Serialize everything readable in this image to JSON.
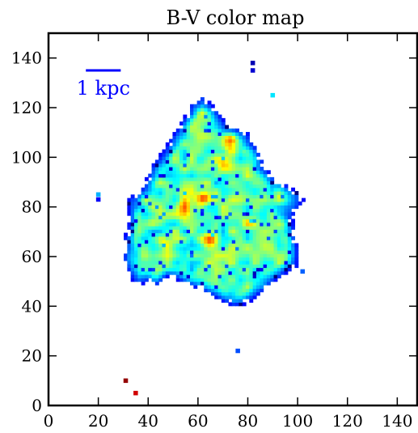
{
  "chart_data": {
    "type": "heatmap",
    "title": "B-V color map",
    "xlabel": "",
    "ylabel": "",
    "xlim": [
      0,
      148
    ],
    "ylim": [
      0,
      150
    ],
    "x_ticks": [
      0,
      20,
      40,
      60,
      80,
      100,
      120,
      140
    ],
    "y_ticks": [
      0,
      20,
      40,
      60,
      80,
      100,
      120,
      140
    ],
    "x_tick_labels": [
      "0",
      "20",
      "40",
      "60",
      "80",
      "100",
      "120",
      "140"
    ],
    "y_tick_labels": [
      "0",
      "20",
      "40",
      "60",
      "80",
      "100",
      "120",
      "140"
    ],
    "colormap": "jet",
    "grid": false,
    "scale_bar": {
      "label": "1 kpc",
      "x_start": 15,
      "x_end": 29,
      "y": 135,
      "color": "#0000ff"
    },
    "galaxy": {
      "center_x": 67,
      "center_y": 76,
      "value_range": [
        0,
        1
      ],
      "core_value": 0.45,
      "edge_value": 0.12,
      "outline": [
        [
          48,
          52
        ],
        [
          43,
          48
        ],
        [
          40,
          50
        ],
        [
          35,
          48
        ],
        [
          33,
          52
        ],
        [
          30,
          59
        ],
        [
          30,
          66
        ],
        [
          32,
          74
        ],
        [
          32,
          84
        ],
        [
          38,
          88
        ],
        [
          41,
          96
        ],
        [
          46,
          103
        ],
        [
          52,
          112
        ],
        [
          57,
          121
        ],
        [
          62,
          125
        ],
        [
          66,
          121
        ],
        [
          72,
          113
        ],
        [
          80,
          110
        ],
        [
          84,
          103
        ],
        [
          88,
          95
        ],
        [
          92,
          91
        ],
        [
          97,
          88
        ],
        [
          103,
          84
        ],
        [
          98,
          76
        ],
        [
          100,
          64
        ],
        [
          100,
          56
        ],
        [
          92,
          51
        ],
        [
          86,
          46
        ],
        [
          80,
          41
        ],
        [
          74,
          40
        ],
        [
          66,
          44
        ],
        [
          58,
          48
        ]
      ],
      "hot_spots": [
        {
          "x": 62,
          "y": 84,
          "value": 0.85
        },
        {
          "x": 65,
          "y": 67,
          "value": 0.78
        },
        {
          "x": 73,
          "y": 106,
          "value": 0.82
        },
        {
          "x": 70,
          "y": 96,
          "value": 0.72
        },
        {
          "x": 55,
          "y": 80,
          "value": 0.68
        },
        {
          "x": 80,
          "y": 74,
          "value": 0.62
        },
        {
          "x": 47,
          "y": 66,
          "value": 0.66
        }
      ]
    },
    "isolated_pixels": [
      {
        "x": 82,
        "y": 138,
        "value": 0.05
      },
      {
        "x": 82,
        "y": 135,
        "value": 0.08
      },
      {
        "x": 20,
        "y": 85,
        "value": 0.3
      },
      {
        "x": 20,
        "y": 83,
        "value": 0.12
      },
      {
        "x": 76,
        "y": 22,
        "value": 0.2
      },
      {
        "x": 31,
        "y": 10,
        "value": 0.98
      },
      {
        "x": 35,
        "y": 5,
        "value": 0.92
      },
      {
        "x": 90,
        "y": 125,
        "value": 0.35
      },
      {
        "x": 102,
        "y": 54,
        "value": 0.22
      }
    ]
  }
}
